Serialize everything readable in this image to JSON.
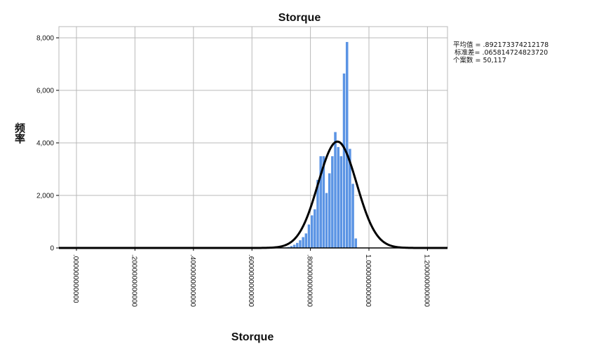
{
  "chart_data": {
    "type": "bar",
    "title": "Storque",
    "xlabel": "Storque",
    "ylabel": "频率",
    "xlim": [
      0,
      1.3
    ],
    "ylim": [
      0,
      8000
    ],
    "grid": true,
    "legend": "none",
    "bar_color": "#5b94e4",
    "curve_color": "#000000",
    "y_ticks": [
      {
        "value": 0,
        "label": "0"
      },
      {
        "value": 2000,
        "label": "2,000"
      },
      {
        "value": 4000,
        "label": "4,000"
      },
      {
        "value": 6000,
        "label": "6,000"
      },
      {
        "value": 8000,
        "label": "8,000"
      }
    ],
    "x_ticks": [
      {
        "value": 0,
        "label": ".000000000000"
      },
      {
        "value": 0.2,
        "label": ".2000000000000"
      },
      {
        "value": 0.4,
        "label": ".4000000000000"
      },
      {
        "value": 0.6,
        "label": ".6000000000000"
      },
      {
        "value": 0.8,
        "label": ".8000000000000"
      },
      {
        "value": 1.0,
        "label": "1.000000000000"
      },
      {
        "value": 1.2,
        "label": "1.200000000000"
      }
    ],
    "stats": [
      "平均值 = .892173374212178",
      "标准差= .065814724823720",
      "个案数 = 50,117"
    ],
    "normal_curve": {
      "mean": 0.892173374212178,
      "std": 0.06581472482372,
      "peak": 4050
    },
    "bin_width": 0.01,
    "bins": [
      [
        0.0,
        50
      ],
      [
        0.64,
        20
      ],
      [
        0.65,
        25
      ],
      [
        0.66,
        15
      ],
      [
        0.67,
        10
      ],
      [
        0.68,
        12
      ],
      [
        0.69,
        15
      ],
      [
        0.7,
        20
      ],
      [
        0.71,
        30
      ],
      [
        0.72,
        45
      ],
      [
        0.73,
        80
      ],
      [
        0.74,
        130
      ],
      [
        0.75,
        200
      ],
      [
        0.76,
        300
      ],
      [
        0.77,
        420
      ],
      [
        0.78,
        560
      ],
      [
        0.79,
        900
      ],
      [
        0.8,
        1250
      ],
      [
        0.81,
        1480
      ],
      [
        0.82,
        2600
      ],
      [
        0.83,
        3500
      ],
      [
        0.84,
        3500
      ],
      [
        0.85,
        2100
      ],
      [
        0.86,
        2850
      ],
      [
        0.87,
        3500
      ],
      [
        0.88,
        4420
      ],
      [
        0.89,
        3850
      ],
      [
        0.9,
        3500
      ],
      [
        0.91,
        6650
      ],
      [
        0.92,
        7850
      ],
      [
        0.93,
        3780
      ],
      [
        0.94,
        2450
      ],
      [
        0.95,
        370
      ]
    ]
  }
}
